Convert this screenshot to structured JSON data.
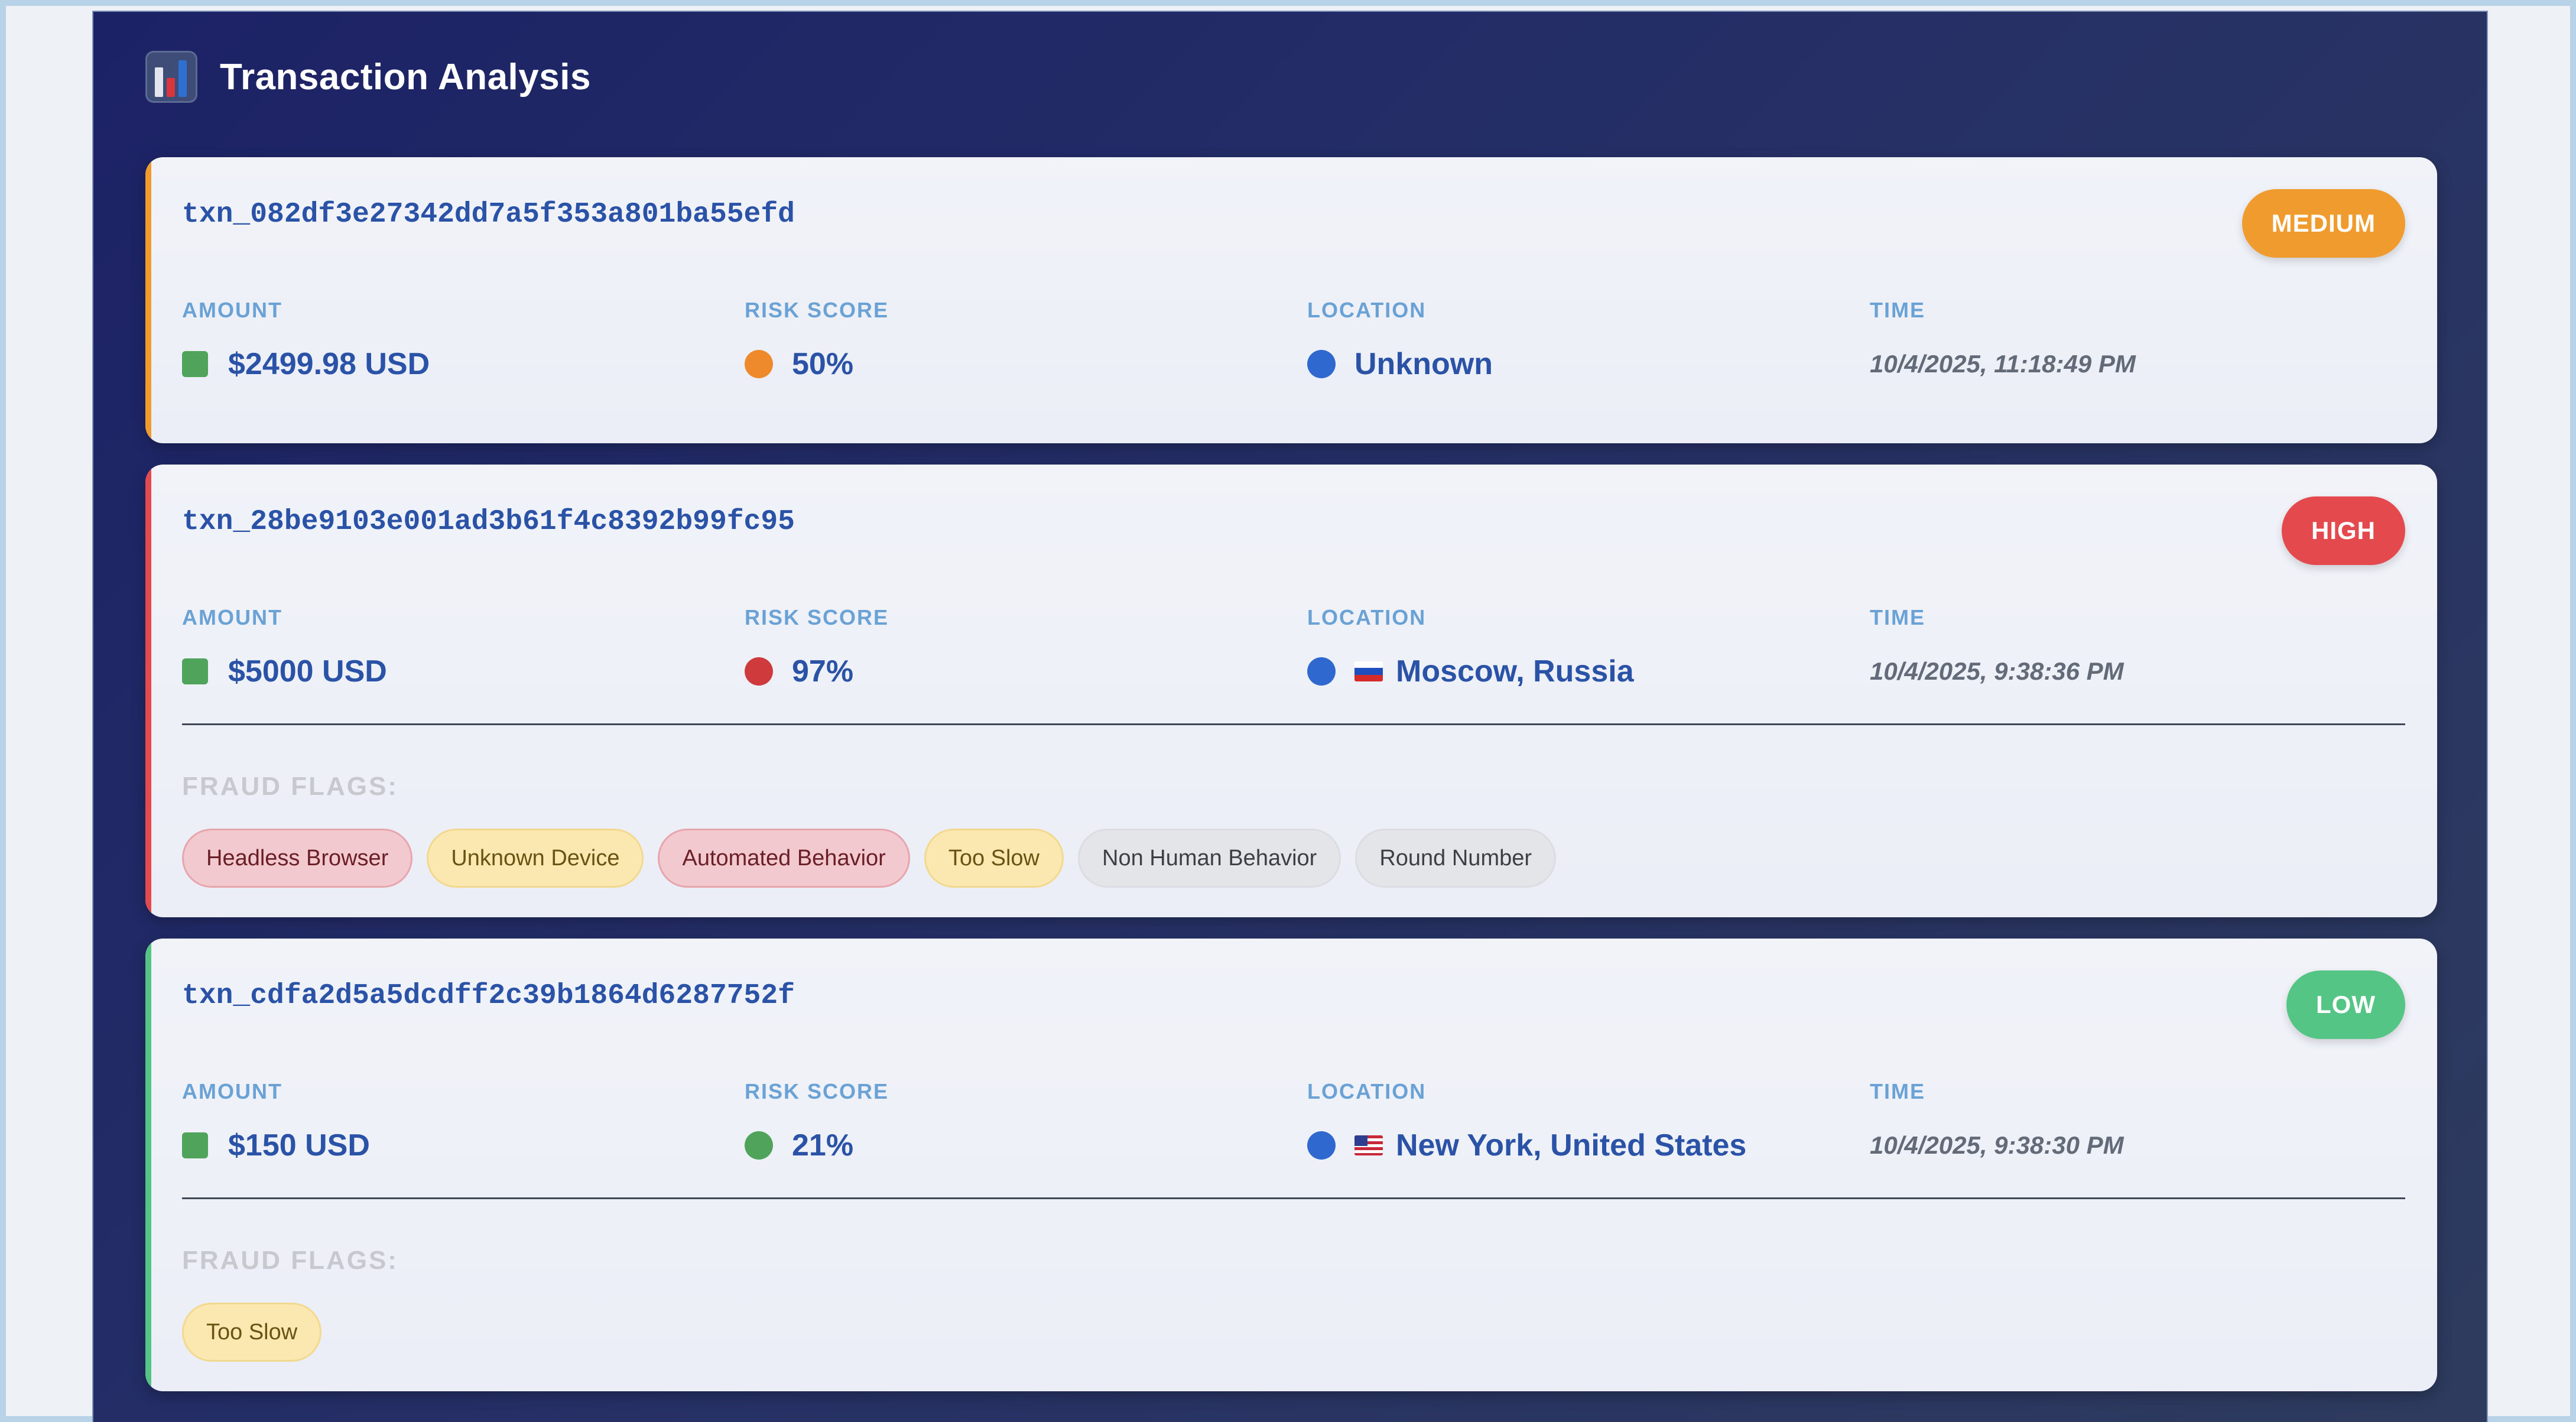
{
  "header": {
    "icon": "bar-chart-icon",
    "title": "Transaction Analysis"
  },
  "labels": {
    "amount": "AMOUNT",
    "risk_score": "RISK SCORE",
    "location": "LOCATION",
    "time": "TIME",
    "fraud_flags": "FRAUD FLAGS:"
  },
  "colors": {
    "medium": "#ef9b2e",
    "high": "#e44a4d",
    "low": "#55c585",
    "amount_marker": "#4fa35b",
    "location_marker": "#2f68cf"
  },
  "transactions": [
    {
      "id": "txn_082df3e27342dd7a5f353a801ba55efd",
      "level": "MEDIUM",
      "amount": "$2499.98 USD",
      "risk_score": "50%",
      "risk_color": "#ee8a2c",
      "location": "Unknown",
      "location_flag": null,
      "time": "10/4/2025, 11:18:49 PM",
      "fraud_flags": []
    },
    {
      "id": "txn_28be9103e001ad3b61f4c8392b99fc95",
      "level": "HIGH",
      "amount": "$5000 USD",
      "risk_score": "97%",
      "risk_color": "#cf3a3d",
      "location": "Moscow, Russia",
      "location_flag": "russia-flag-icon",
      "time": "10/4/2025, 9:38:36 PM",
      "fraud_flags": [
        {
          "label": "Headless Browser",
          "severity": "red"
        },
        {
          "label": "Unknown Device",
          "severity": "yellow"
        },
        {
          "label": "Automated Behavior",
          "severity": "red"
        },
        {
          "label": "Too Slow",
          "severity": "yellow"
        },
        {
          "label": "Non Human Behavior",
          "severity": "gray"
        },
        {
          "label": "Round Number",
          "severity": "gray"
        }
      ]
    },
    {
      "id": "txn_cdfa2d5a5dcdff2c39b1864d6287752f",
      "level": "LOW",
      "amount": "$150 USD",
      "risk_score": "21%",
      "risk_color": "#4fa35b",
      "location": "New York, United States",
      "location_flag": "usa-flag-icon",
      "time": "10/4/2025, 9:38:30 PM",
      "fraud_flags": [
        {
          "label": "Too Slow",
          "severity": "yellow"
        }
      ]
    }
  ]
}
